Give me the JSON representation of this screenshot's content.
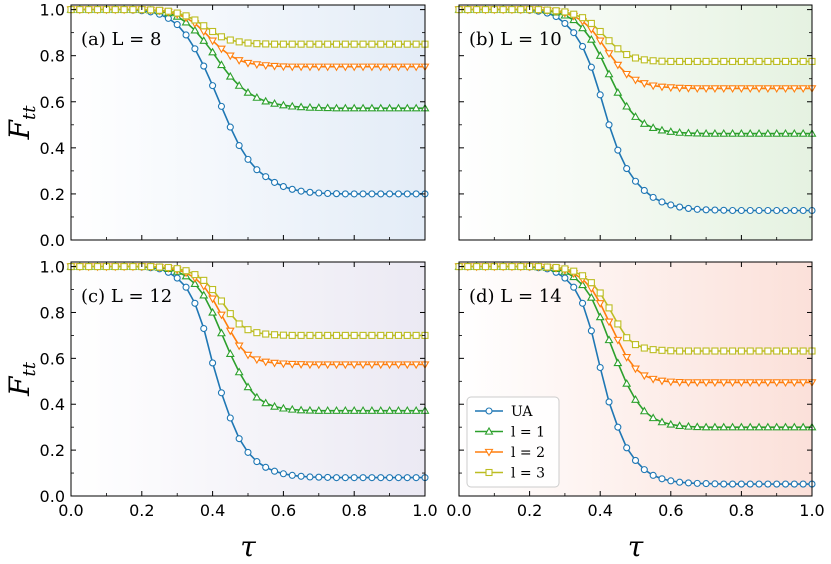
{
  "chart_data": {
    "type": "line",
    "x": [
      0.0,
      0.025,
      0.05,
      0.075,
      0.1,
      0.125,
      0.15,
      0.175,
      0.2,
      0.225,
      0.25,
      0.275,
      0.3,
      0.325,
      0.35,
      0.375,
      0.4,
      0.425,
      0.45,
      0.475,
      0.5,
      0.525,
      0.55,
      0.575,
      0.6,
      0.625,
      0.65,
      0.675,
      0.7,
      0.725,
      0.75,
      0.775,
      0.8,
      0.825,
      0.85,
      0.875,
      0.9,
      0.925,
      0.95,
      0.975,
      1.0
    ],
    "xlabel": "τ",
    "ylabel": "F",
    "ylabel_sub": "tt",
    "xlim": [
      0.0,
      1.0
    ],
    "ylim": [
      0.0,
      1.02
    ],
    "xticks": [
      "0.0",
      "0.2",
      "0.4",
      "0.6",
      "0.8",
      "1.0"
    ],
    "yticks": [
      "0.0",
      "0.2",
      "0.4",
      "0.6",
      "0.8",
      "1.0"
    ],
    "series_styles": [
      {
        "name": "UA",
        "color": "#1f77b4",
        "marker": "circle"
      },
      {
        "name": "l = 1",
        "color": "#2ca02c",
        "marker": "triangle-up"
      },
      {
        "name": "l = 2",
        "color": "#ff7f0e",
        "marker": "triangle-down"
      },
      {
        "name": "l = 3",
        "color": "#bcbd22",
        "marker": "square"
      }
    ],
    "legend": {
      "entries": [
        "UA",
        "l = 1",
        "l = 2",
        "l = 3"
      ],
      "panel": 3,
      "location": "lower-left"
    },
    "panels": [
      {
        "label": "(a) L = 8",
        "gradient": [
          "#ffffff",
          "#e3ecf7"
        ],
        "series": [
          {
            "name": "UA",
            "values": [
              1.0,
              1.0,
              1.0,
              1.0,
              1.0,
              1.0,
              1.0,
              0.998,
              0.995,
              0.99,
              0.98,
              0.962,
              0.935,
              0.89,
              0.83,
              0.755,
              0.67,
              0.58,
              0.49,
              0.41,
              0.35,
              0.305,
              0.275,
              0.25,
              0.232,
              0.22,
              0.212,
              0.207,
              0.204,
              0.202,
              0.201,
              0.2,
              0.2,
              0.2,
              0.2,
              0.2,
              0.2,
              0.2,
              0.2,
              0.2,
              0.2
            ]
          },
          {
            "name": "l = 1",
            "values": [
              1.0,
              1.0,
              1.0,
              1.0,
              1.0,
              1.0,
              1.0,
              1.0,
              0.999,
              0.997,
              0.993,
              0.985,
              0.97,
              0.945,
              0.91,
              0.865,
              0.815,
              0.76,
              0.71,
              0.67,
              0.64,
              0.618,
              0.602,
              0.592,
              0.585,
              0.58,
              0.577,
              0.575,
              0.574,
              0.573,
              0.572,
              0.572,
              0.572,
              0.572,
              0.572,
              0.572,
              0.572,
              0.572,
              0.572,
              0.572,
              0.572
            ]
          },
          {
            "name": "l = 2",
            "values": [
              1.0,
              1.0,
              1.0,
              1.0,
              1.0,
              1.0,
              1.0,
              1.0,
              1.0,
              0.998,
              0.995,
              0.99,
              0.98,
              0.965,
              0.94,
              0.905,
              0.865,
              0.83,
              0.8,
              0.78,
              0.768,
              0.762,
              0.758,
              0.755,
              0.753,
              0.752,
              0.752,
              0.752,
              0.752,
              0.752,
              0.752,
              0.752,
              0.752,
              0.752,
              0.752,
              0.752,
              0.752,
              0.752,
              0.752,
              0.752,
              0.752
            ]
          },
          {
            "name": "l = 3",
            "values": [
              1.0,
              1.0,
              1.0,
              1.0,
              1.0,
              1.0,
              1.0,
              1.0,
              1.0,
              0.999,
              0.997,
              0.993,
              0.985,
              0.973,
              0.955,
              0.93,
              0.905,
              0.882,
              0.868,
              0.86,
              0.855,
              0.852,
              0.851,
              0.85,
              0.85,
              0.85,
              0.85,
              0.85,
              0.85,
              0.85,
              0.85,
              0.85,
              0.85,
              0.85,
              0.85,
              0.85,
              0.85,
              0.85,
              0.85,
              0.85,
              0.85
            ]
          }
        ]
      },
      {
        "label": "(b) L = 10",
        "gradient": [
          "#ffffff",
          "#e5f2e1"
        ],
        "series": [
          {
            "name": "UA",
            "values": [
              1.0,
              1.0,
              1.0,
              1.0,
              1.0,
              1.0,
              1.0,
              0.999,
              0.997,
              0.993,
              0.985,
              0.97,
              0.94,
              0.9,
              0.84,
              0.75,
              0.63,
              0.5,
              0.39,
              0.31,
              0.255,
              0.215,
              0.185,
              0.165,
              0.152,
              0.143,
              0.137,
              0.133,
              0.131,
              0.13,
              0.129,
              0.128,
              0.128,
              0.128,
              0.128,
              0.128,
              0.128,
              0.128,
              0.128,
              0.128,
              0.128
            ]
          },
          {
            "name": "l = 1",
            "values": [
              1.0,
              1.0,
              1.0,
              1.0,
              1.0,
              1.0,
              1.0,
              1.0,
              1.0,
              0.998,
              0.995,
              0.988,
              0.975,
              0.955,
              0.92,
              0.87,
              0.8,
              0.72,
              0.64,
              0.58,
              0.535,
              0.505,
              0.487,
              0.476,
              0.47,
              0.466,
              0.464,
              0.463,
              0.462,
              0.462,
              0.462,
              0.462,
              0.462,
              0.462,
              0.462,
              0.462,
              0.462,
              0.462,
              0.462,
              0.462,
              0.462
            ]
          },
          {
            "name": "l = 2",
            "values": [
              1.0,
              1.0,
              1.0,
              1.0,
              1.0,
              1.0,
              1.0,
              1.0,
              1.0,
              0.999,
              0.997,
              0.993,
              0.985,
              0.972,
              0.95,
              0.915,
              0.865,
              0.81,
              0.76,
              0.72,
              0.695,
              0.68,
              0.67,
              0.665,
              0.662,
              0.66,
              0.659,
              0.658,
              0.658,
              0.658,
              0.658,
              0.658,
              0.658,
              0.658,
              0.658,
              0.658,
              0.658,
              0.658,
              0.658,
              0.658,
              0.658
            ]
          },
          {
            "name": "l = 3",
            "values": [
              1.0,
              1.0,
              1.0,
              1.0,
              1.0,
              1.0,
              1.0,
              1.0,
              1.0,
              1.0,
              0.998,
              0.995,
              0.99,
              0.98,
              0.965,
              0.94,
              0.905,
              0.865,
              0.83,
              0.805,
              0.79,
              0.782,
              0.778,
              0.776,
              0.775,
              0.775,
              0.775,
              0.775,
              0.775,
              0.775,
              0.775,
              0.775,
              0.775,
              0.775,
              0.775,
              0.775,
              0.775,
              0.775,
              0.775,
              0.775,
              0.775
            ]
          }
        ]
      },
      {
        "label": "(c) L = 12",
        "gradient": [
          "#ffffff",
          "#ebe9f3"
        ],
        "series": [
          {
            "name": "UA",
            "values": [
              1.0,
              1.0,
              1.0,
              1.0,
              1.0,
              1.0,
              1.0,
              1.0,
              0.998,
              0.995,
              0.99,
              0.975,
              0.95,
              0.91,
              0.84,
              0.73,
              0.58,
              0.45,
              0.34,
              0.25,
              0.19,
              0.15,
              0.125,
              0.108,
              0.097,
              0.09,
              0.086,
              0.083,
              0.082,
              0.081,
              0.08,
              0.08,
              0.08,
              0.08,
              0.08,
              0.08,
              0.08,
              0.08,
              0.08,
              0.08,
              0.08
            ]
          },
          {
            "name": "l = 1",
            "values": [
              1.0,
              1.0,
              1.0,
              1.0,
              1.0,
              1.0,
              1.0,
              1.0,
              1.0,
              0.998,
              0.995,
              0.99,
              0.978,
              0.958,
              0.925,
              0.875,
              0.8,
              0.71,
              0.62,
              0.54,
              0.475,
              0.43,
              0.405,
              0.39,
              0.382,
              0.377,
              0.374,
              0.373,
              0.372,
              0.372,
              0.372,
              0.372,
              0.372,
              0.372,
              0.372,
              0.372,
              0.372,
              0.372,
              0.372,
              0.372,
              0.372
            ]
          },
          {
            "name": "l = 2",
            "values": [
              1.0,
              1.0,
              1.0,
              1.0,
              1.0,
              1.0,
              1.0,
              1.0,
              1.0,
              0.999,
              0.997,
              0.993,
              0.986,
              0.973,
              0.95,
              0.915,
              0.86,
              0.79,
              0.72,
              0.655,
              0.615,
              0.595,
              0.585,
              0.58,
              0.577,
              0.575,
              0.574,
              0.573,
              0.573,
              0.573,
              0.573,
              0.573,
              0.573,
              0.573,
              0.573,
              0.573,
              0.573,
              0.573,
              0.573,
              0.573,
              0.573
            ]
          },
          {
            "name": "l = 3",
            "values": [
              1.0,
              1.0,
              1.0,
              1.0,
              1.0,
              1.0,
              1.0,
              1.0,
              1.0,
              1.0,
              0.998,
              0.996,
              0.991,
              0.982,
              0.965,
              0.94,
              0.9,
              0.85,
              0.795,
              0.75,
              0.725,
              0.712,
              0.706,
              0.703,
              0.701,
              0.7,
              0.7,
              0.7,
              0.7,
              0.7,
              0.7,
              0.7,
              0.7,
              0.7,
              0.7,
              0.7,
              0.7,
              0.7,
              0.7,
              0.7,
              0.7
            ]
          }
        ]
      },
      {
        "label": "(d) L = 14",
        "gradient": [
          "#ffffff",
          "#fbe0d9"
        ],
        "series": [
          {
            "name": "UA",
            "values": [
              1.0,
              1.0,
              1.0,
              1.0,
              1.0,
              1.0,
              1.0,
              1.0,
              0.998,
              0.995,
              0.99,
              0.975,
              0.95,
              0.91,
              0.84,
              0.72,
              0.56,
              0.41,
              0.3,
              0.21,
              0.155,
              0.115,
              0.09,
              0.075,
              0.066,
              0.06,
              0.057,
              0.055,
              0.054,
              0.053,
              0.052,
              0.052,
              0.052,
              0.052,
              0.052,
              0.052,
              0.052,
              0.052,
              0.052,
              0.052,
              0.052
            ]
          },
          {
            "name": "l = 1",
            "values": [
              1.0,
              1.0,
              1.0,
              1.0,
              1.0,
              1.0,
              1.0,
              1.0,
              1.0,
              0.998,
              0.995,
              0.99,
              0.978,
              0.955,
              0.92,
              0.865,
              0.78,
              0.68,
              0.58,
              0.49,
              0.42,
              0.37,
              0.34,
              0.322,
              0.312,
              0.306,
              0.303,
              0.301,
              0.3,
              0.3,
              0.3,
              0.3,
              0.3,
              0.3,
              0.3,
              0.3,
              0.3,
              0.3,
              0.3,
              0.3,
              0.3
            ]
          },
          {
            "name": "l = 2",
            "values": [
              1.0,
              1.0,
              1.0,
              1.0,
              1.0,
              1.0,
              1.0,
              1.0,
              1.0,
              0.999,
              0.997,
              0.993,
              0.985,
              0.97,
              0.945,
              0.905,
              0.84,
              0.76,
              0.68,
              0.605,
              0.555,
              0.525,
              0.51,
              0.502,
              0.498,
              0.496,
              0.495,
              0.495,
              0.495,
              0.495,
              0.495,
              0.495,
              0.495,
              0.495,
              0.495,
              0.495,
              0.495,
              0.495,
              0.495,
              0.495,
              0.495
            ]
          },
          {
            "name": "l = 3",
            "values": [
              1.0,
              1.0,
              1.0,
              1.0,
              1.0,
              1.0,
              1.0,
              1.0,
              1.0,
              1.0,
              0.998,
              0.996,
              0.99,
              0.98,
              0.96,
              0.93,
              0.885,
              0.82,
              0.75,
              0.69,
              0.66,
              0.645,
              0.638,
              0.635,
              0.633,
              0.632,
              0.632,
              0.632,
              0.632,
              0.632,
              0.632,
              0.632,
              0.632,
              0.632,
              0.632,
              0.632,
              0.632,
              0.632,
              0.632,
              0.632,
              0.632
            ]
          }
        ]
      }
    ]
  }
}
